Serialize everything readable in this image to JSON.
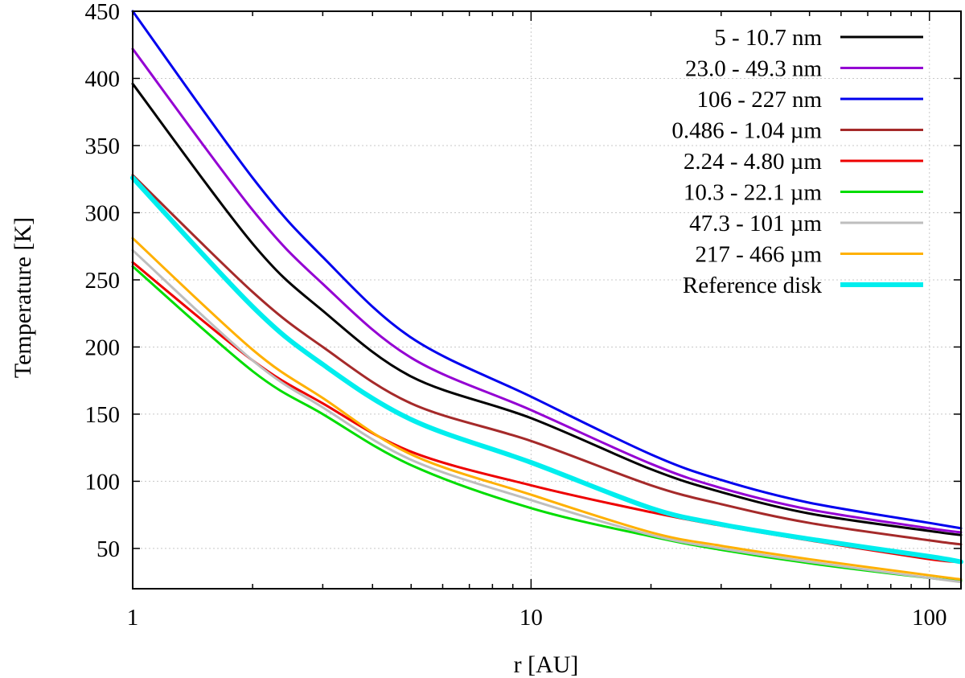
{
  "chart_data": {
    "type": "line",
    "title": "",
    "xlabel": "r [AU]",
    "ylabel": "Temperature [K]",
    "xscale": "log",
    "xlim": [
      1,
      120
    ],
    "ylim": [
      20,
      450
    ],
    "xticks": [
      1,
      10,
      100
    ],
    "xtick_labels": [
      "1",
      "10",
      "100"
    ],
    "yticks": [
      50,
      100,
      150,
      200,
      250,
      300,
      350,
      400,
      450
    ],
    "ytick_labels": [
      "50",
      "100",
      "150",
      "200",
      "250",
      "300",
      "350",
      "400",
      "450"
    ],
    "grid": true,
    "legend_position": "top-right",
    "x": [
      1,
      2,
      3,
      5,
      10,
      20,
      30,
      50,
      100,
      120
    ],
    "series": [
      {
        "name": "5 - 10.7 nm",
        "color": "#000000",
        "values": [
          396,
          277,
          227,
          178,
          147,
          109,
          92,
          76,
          63,
          60
        ]
      },
      {
        "name": "23.0 - 49.3 nm",
        "color": "#9400d3",
        "values": [
          422,
          302,
          247,
          192,
          153,
          113,
          95,
          79,
          65,
          62
        ]
      },
      {
        "name": "106 - 227 nm",
        "color": "#0000ee",
        "values": [
          450,
          326,
          267,
          207,
          163,
          120,
          101,
          84,
          69,
          65
        ]
      },
      {
        "name": "0.486 - 1.04 µm",
        "color": "#a52a2a",
        "values": [
          328,
          241,
          200,
          158,
          130,
          97,
          83,
          69,
          56,
          53
        ]
      },
      {
        "name": "2.24 - 4.80 µm",
        "color": "#ee0000",
        "values": [
          263,
          190,
          158,
          122,
          97,
          77,
          67,
          56,
          42,
          40
        ]
      },
      {
        "name": "10.3 - 22.1 µm",
        "color": "#00dd00",
        "values": [
          260,
          182,
          150,
          112,
          80,
          59,
          49,
          39,
          28,
          26
        ]
      },
      {
        "name": "47.3 - 101 µm",
        "color": "#bebebe",
        "values": [
          272,
          190,
          155,
          116,
          86,
          60,
          50,
          40,
          28,
          25
        ]
      },
      {
        "name": "217 - 466 µm",
        "color": "#ffb000",
        "values": [
          281,
          198,
          162,
          120,
          90,
          62,
          52,
          42,
          30,
          27
        ]
      },
      {
        "name": "Reference disk",
        "color": "#00eeee",
        "values": [
          326,
          230,
          187,
          146,
          114,
          80,
          68,
          57,
          44,
          40
        ]
      }
    ]
  }
}
